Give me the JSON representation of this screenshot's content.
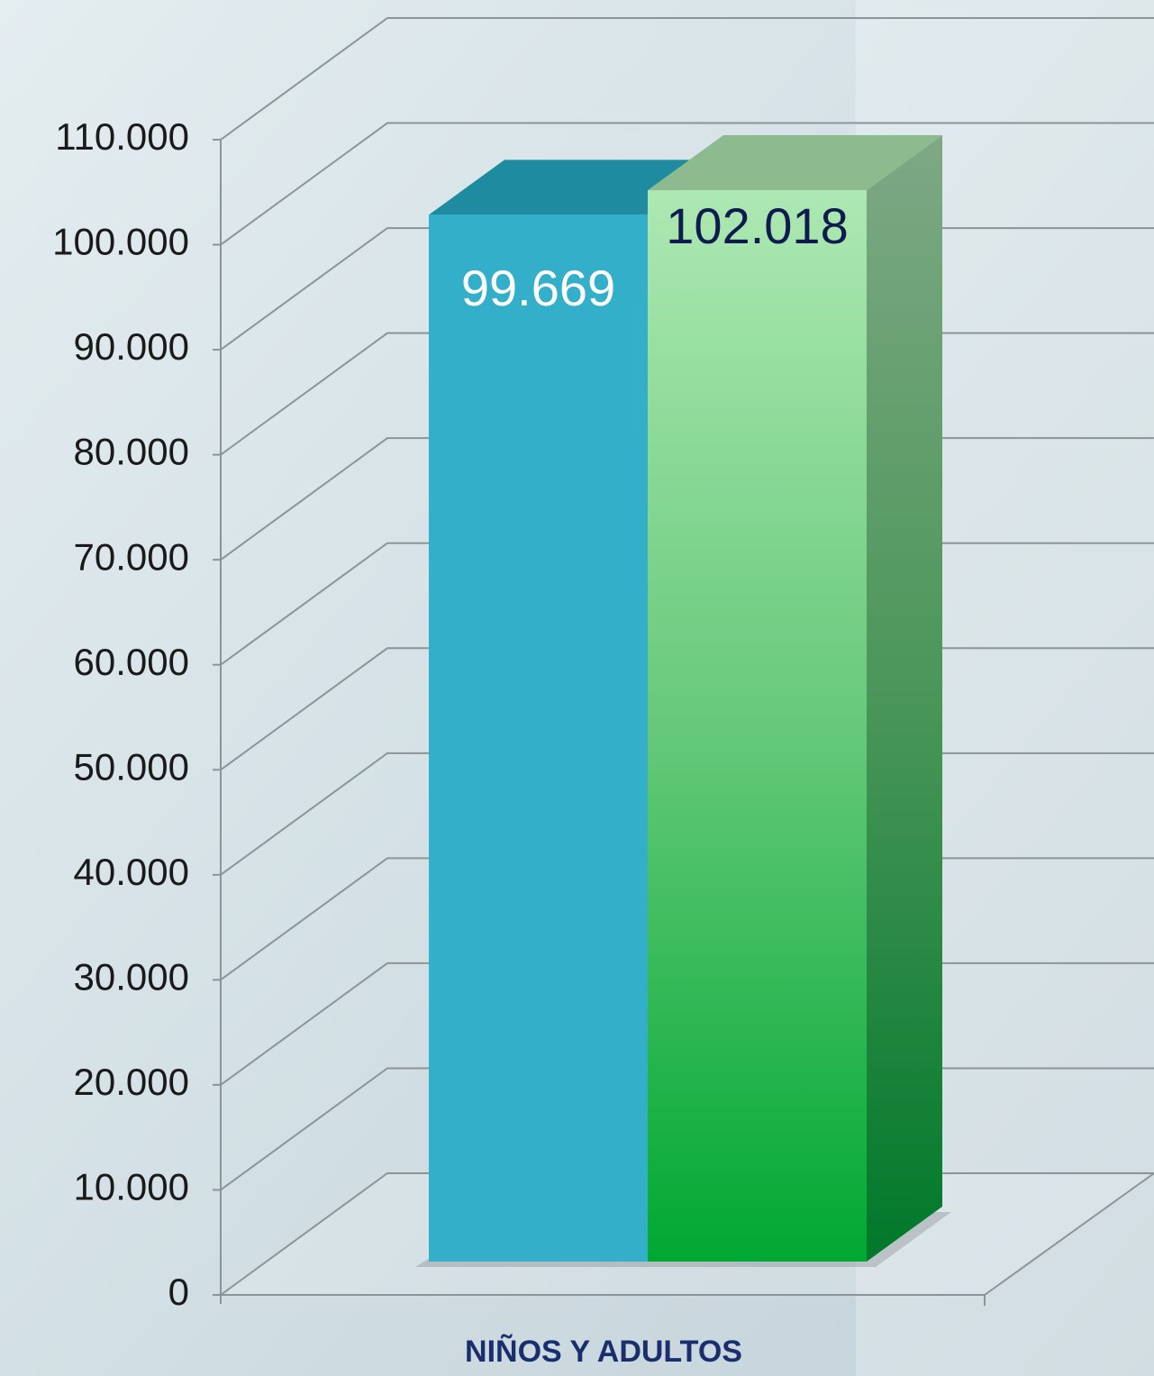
{
  "chart_data": {
    "type": "bar3d",
    "categories": [
      "NIÑOS Y ADULTOS"
    ],
    "series": [
      {
        "color": "#34afc9",
        "label_color": "#ffffff",
        "values": [
          99669
        ],
        "value_labels": [
          "99.669"
        ]
      },
      {
        "color": "#2db84d",
        "label_color": "#0d1b4f",
        "values": [
          102018
        ],
        "value_labels": [
          "102.018"
        ]
      }
    ],
    "ylim": [
      0,
      110000
    ],
    "yticks": [
      0,
      {
        "value": 10000,
        "label": "10.000"
      },
      {
        "value": 20000,
        "label": "20.000"
      },
      {
        "value": 30000,
        "label": "30.000"
      },
      {
        "value": 40000,
        "label": "40.000"
      },
      {
        "value": 50000,
        "label": "50.000"
      },
      {
        "value": 60000,
        "label": "60.000"
      },
      {
        "value": 70000,
        "label": "70.000"
      },
      {
        "value": 80000,
        "label": "80.000"
      },
      {
        "value": 90000,
        "label": "90.000"
      },
      {
        "value": 100000,
        "label": "100.000"
      },
      {
        "value": 110000,
        "label": "110.000"
      }
    ],
    "grid": true
  }
}
